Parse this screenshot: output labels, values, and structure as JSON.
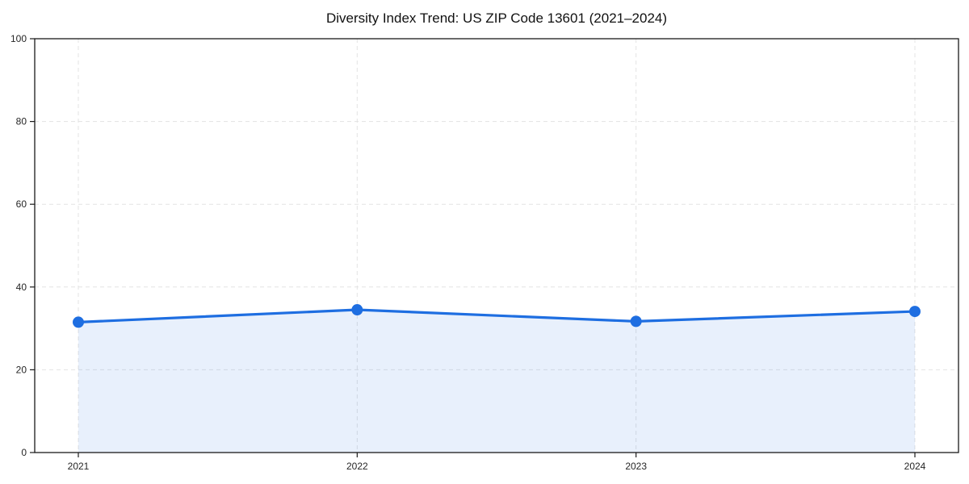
{
  "chart_data": {
    "type": "area",
    "title": "Diversity Index Trend: US ZIP Code 13601 (2021–2024)",
    "categories": [
      "2021",
      "2022",
      "2023",
      "2024"
    ],
    "series": [
      {
        "name": "Diversity Index",
        "values": [
          31.5,
          34.5,
          31.7,
          34.1
        ]
      }
    ],
    "xlabel": "",
    "ylabel": "",
    "ylim": [
      0,
      100
    ],
    "yticks": [
      0,
      20,
      40,
      60,
      80,
      100
    ],
    "grid": true,
    "legend_visible": false,
    "line_color": "#1e6ee1",
    "fill_color": "rgba(30, 110, 225, 0.10)",
    "marker": "circle",
    "grid_color": "#e3e3e3",
    "spine_color": "#1a1a1a",
    "background_color": "#ffffff"
  }
}
